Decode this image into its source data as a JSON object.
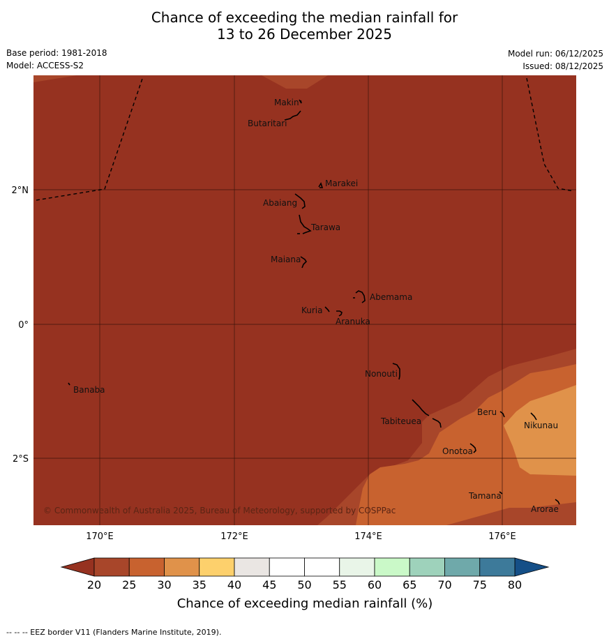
{
  "title": {
    "line1": "Chance of exceeding the median rainfall for",
    "line2": "13 to 26 December 2025"
  },
  "meta": {
    "base_period": "Base period: 1981-2018",
    "model": "Model: ACCESS-S2",
    "model_run": "Model run: 06/12/2025",
    "issued": "Issued: 08/12/2025"
  },
  "map": {
    "lat_labels": [
      "2°N",
      "0°",
      "2°S"
    ],
    "lon_labels": [
      "170°E",
      "172°E",
      "174°E",
      "176°E"
    ],
    "copyright": "© Commonwealth of Australia 2025, Bureau of Meteorology, supported by COSPPac",
    "places": [
      "Makin",
      "Butaritari",
      "Marakei",
      "Abaiang",
      "Tarawa",
      "Maiana",
      "Abemama",
      "Kuria",
      "Aranuka",
      "Banaba",
      "Nonouti",
      "Tabiteuea",
      "Beru",
      "Nikunau",
      "Onotoa",
      "Tamana",
      "Arorae"
    ]
  },
  "colorbar": {
    "ticks": [
      "20",
      "25",
      "30",
      "35",
      "40",
      "45",
      "50",
      "55",
      "60",
      "65",
      "70",
      "75",
      "80"
    ],
    "colors": [
      "#a8462a",
      "#c8622f",
      "#e0924a",
      "#fdd06c",
      "#eae6e3",
      "#ffffff",
      "#ffffff",
      "#e9f5e8",
      "#caf9c8",
      "#9ed2bb",
      "#6fa9aa",
      "#3d7a9a"
    ],
    "below_color": "#963220",
    "above_color": "#154f87",
    "label": "Chance of exceeding median rainfall (%)"
  },
  "footer": "--  --  -- EEZ border V11 (Flanders Marine Institute, 2019)."
}
